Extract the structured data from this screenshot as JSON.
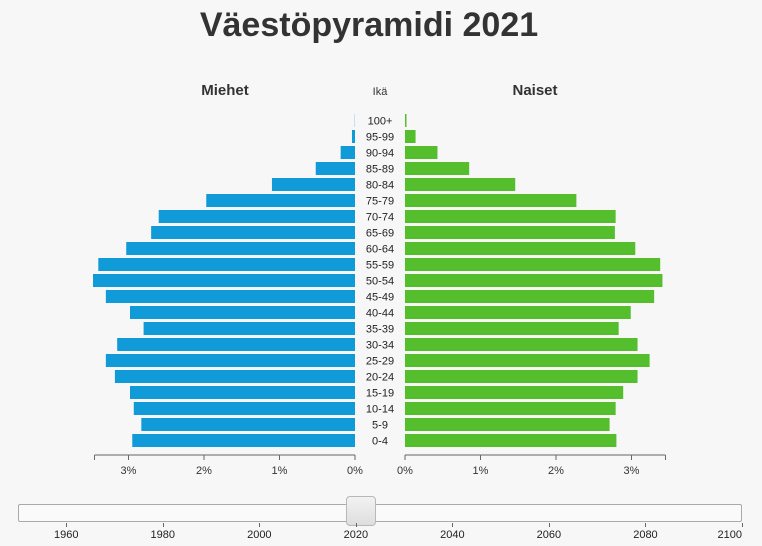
{
  "title": "Väestöpyramidi 2021",
  "chart_data": {
    "type": "bar",
    "orientation": "horizontal-population-pyramid",
    "title": "Väestöpyramidi 2021",
    "category_header": "Ikä",
    "categories": [
      "100+",
      "95-99",
      "90-94",
      "85-89",
      "80-84",
      "75-79",
      "70-74",
      "65-69",
      "60-64",
      "55-59",
      "50-54",
      "45-49",
      "40-44",
      "35-39",
      "30-34",
      "25-29",
      "20-24",
      "15-19",
      "10-14",
      "5-9",
      "0-4"
    ],
    "series": [
      {
        "name": "Miehet",
        "color": "#109ad7",
        "values": [
          0.003,
          0.04,
          0.19,
          0.52,
          1.1,
          1.97,
          2.6,
          2.7,
          3.03,
          3.4,
          3.47,
          3.3,
          2.98,
          2.8,
          3.15,
          3.3,
          3.18,
          2.98,
          2.93,
          2.83,
          2.95
        ]
      },
      {
        "name": "Naiset",
        "color": "#54be2d",
        "values": [
          0.02,
          0.14,
          0.43,
          0.85,
          1.46,
          2.27,
          2.79,
          2.78,
          3.05,
          3.38,
          3.41,
          3.3,
          2.99,
          2.83,
          3.08,
          3.24,
          3.08,
          2.89,
          2.79,
          2.71,
          2.8
        ]
      }
    ],
    "xlim": [
      0,
      3.5
    ],
    "x_ticks": [
      3,
      2,
      1,
      0
    ],
    "x_tick_labels": [
      "3%",
      "2%",
      "1%",
      "0%"
    ],
    "x_ticks_right": [
      0,
      1,
      2,
      3
    ],
    "x_tick_labels_right": [
      "0%",
      "1%",
      "2%",
      "3%"
    ]
  },
  "slider": {
    "min": 1950,
    "max": 2100,
    "value": 2021,
    "tick_labels": [
      "1960",
      "1980",
      "2000",
      "2020",
      "2040",
      "2060",
      "2080",
      "2100"
    ]
  }
}
